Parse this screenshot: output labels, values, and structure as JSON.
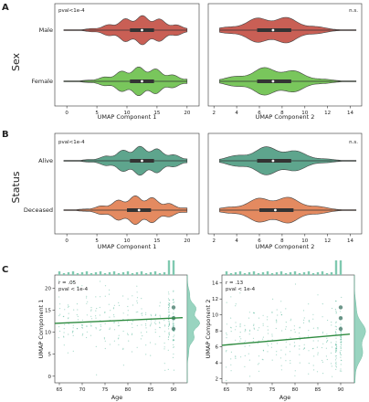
{
  "panels": {
    "A": {
      "letter": "A",
      "side_label": "Sex",
      "categories": [
        "Male",
        "Female"
      ],
      "colors": [
        "#c95f55",
        "#79c65c"
      ],
      "left": {
        "annotation": "pval<1e-4",
        "xlabel": "UMAP Component 1",
        "ticks": [
          "0",
          "5",
          "10",
          "15",
          "20"
        ]
      },
      "right": {
        "annotation": "n.s.",
        "xlabel": "UMAP Component 2",
        "ticks": [
          "2",
          "4",
          "6",
          "8",
          "10",
          "12",
          "14"
        ]
      }
    },
    "B": {
      "letter": "B",
      "side_label": "Status",
      "categories": [
        "Alive",
        "Deceased"
      ],
      "colors": [
        "#5ea58d",
        "#e48a60"
      ],
      "left": {
        "annotation": "pval<1e-4",
        "xlabel": "UMAP Component 1",
        "ticks": [
          "0",
          "5",
          "10",
          "15",
          "20"
        ]
      },
      "right": {
        "annotation": "n.s.",
        "xlabel": "UMAP Component 2",
        "ticks": [
          "2",
          "4",
          "6",
          "8",
          "10",
          "12",
          "14"
        ]
      }
    },
    "C": {
      "letter": "C",
      "left": {
        "annotations": [
          "r = .05",
          "pval < 1e-4"
        ],
        "xlabel": "Age",
        "ylabel": "UMAP Component 1",
        "xticks": [
          "65",
          "70",
          "75",
          "80",
          "85",
          "90"
        ],
        "yticks": [
          "0",
          "5",
          "10",
          "15",
          "20"
        ]
      },
      "right": {
        "annotations": [
          "r = .13",
          "pval < 1e-4"
        ],
        "xlabel": "Age",
        "ylabel": "UMAP Component 2",
        "xticks": [
          "65",
          "70",
          "75",
          "80",
          "85",
          "90"
        ],
        "yticks": [
          "2",
          "4",
          "6",
          "8",
          "10",
          "12",
          "14"
        ]
      }
    }
  },
  "chart_data": [
    {
      "type": "violin",
      "panel": "A-left",
      "categories": [
        "Male",
        "Female"
      ],
      "xlabel": "UMAP Component 1",
      "xlim": [
        -2,
        22
      ],
      "series": [
        {
          "name": "Male",
          "median": 12.5,
          "q1": 10.5,
          "q3": 14.5,
          "min": -0.5,
          "max": 20
        },
        {
          "name": "Female",
          "median": 12.5,
          "q1": 10.5,
          "q3": 14.5,
          "min": -0.5,
          "max": 20
        }
      ]
    },
    {
      "type": "violin",
      "panel": "A-right",
      "categories": [
        "Male",
        "Female"
      ],
      "xlabel": "UMAP Component 2",
      "xlim": [
        1.5,
        15
      ],
      "series": [
        {
          "name": "Male",
          "median": 7.2,
          "q1": 5.8,
          "q3": 8.8,
          "min": 2.5,
          "max": 14.5
        },
        {
          "name": "Female",
          "median": 7.2,
          "q1": 5.8,
          "q3": 8.8,
          "min": 2.5,
          "max": 14.5
        }
      ]
    },
    {
      "type": "violin",
      "panel": "B-left",
      "categories": [
        "Alive",
        "Deceased"
      ],
      "xlabel": "UMAP Component 1",
      "xlim": [
        -2,
        22
      ],
      "series": [
        {
          "name": "Alive",
          "median": 12.5,
          "q1": 10.5,
          "q3": 14.5,
          "min": -0.5,
          "max": 20
        },
        {
          "name": "Deceased",
          "median": 12.0,
          "q1": 10.0,
          "q3": 14.0,
          "min": -0.5,
          "max": 20
        }
      ]
    },
    {
      "type": "violin",
      "panel": "B-right",
      "categories": [
        "Alive",
        "Deceased"
      ],
      "xlabel": "UMAP Component 2",
      "xlim": [
        1.5,
        15
      ],
      "series": [
        {
          "name": "Alive",
          "median": 7.2,
          "q1": 5.8,
          "q3": 8.8,
          "min": 2.5,
          "max": 14.5
        },
        {
          "name": "Deceased",
          "median": 7.4,
          "q1": 6.0,
          "q3": 9.0,
          "min": 2.5,
          "max": 14.5
        }
      ]
    },
    {
      "type": "scatter",
      "panel": "C-left",
      "xlabel": "Age",
      "ylabel": "UMAP Component 1",
      "xlim": [
        64,
        93
      ],
      "ylim": [
        -1.5,
        23
      ],
      "regression": {
        "x": [
          64,
          92
        ],
        "y": [
          12.0,
          13.3
        ]
      },
      "stats": {
        "r": 0.05,
        "pval": "< 1e-4"
      }
    },
    {
      "type": "scatter",
      "panel": "C-right",
      "xlabel": "Age",
      "ylabel": "UMAP Component 2",
      "xlim": [
        64,
        93
      ],
      "ylim": [
        1.5,
        15
      ],
      "regression": {
        "x": [
          64,
          92
        ],
        "y": [
          6.2,
          7.6
        ]
      },
      "stats": {
        "r": 0.13,
        "pval": "< 1e-4"
      }
    }
  ]
}
